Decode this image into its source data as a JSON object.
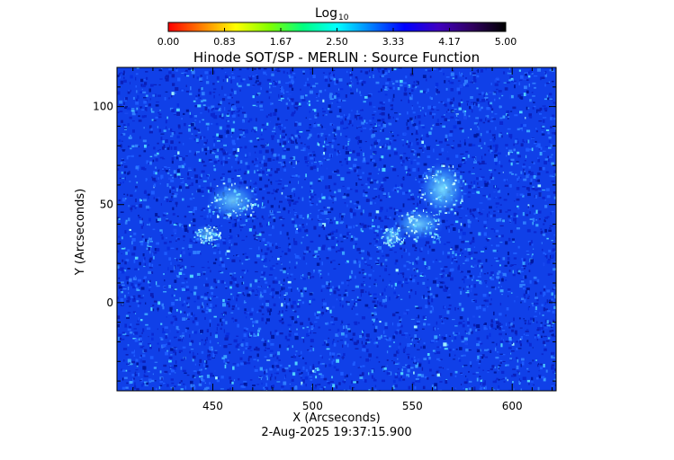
{
  "chart_data": {
    "type": "heatmap",
    "title": "Hinode SOT/SP - MERLIN : Source Function",
    "colorbar": {
      "label_main": "Log",
      "label_sub": "10",
      "ticks": [
        "0.00",
        "0.83",
        "1.67",
        "2.50",
        "3.33",
        "4.17",
        "5.00"
      ],
      "range": [
        0,
        5
      ],
      "colors": [
        "#ff0000",
        "#ff8000",
        "#ffff00",
        "#80ff00",
        "#00ff80",
        "#00ffff",
        "#0080ff",
        "#0000ff",
        "#4000c0",
        "#300060",
        "#000000"
      ]
    },
    "xlabel": "X (Arcseconds)",
    "ylabel": "Y (Arcseconds)",
    "xlim": [
      402,
      622
    ],
    "ylim": [
      -45,
      120
    ],
    "x_ticks": [
      "450",
      "500",
      "550",
      "600"
    ],
    "x_tick_values": [
      450,
      500,
      550,
      600
    ],
    "y_ticks": [
      "0",
      "50",
      "100"
    ],
    "y_tick_values": [
      0,
      50,
      100
    ],
    "background_color": "#1040e8",
    "bright_regions": [
      {
        "x": 460,
        "y": 52,
        "rx": 13,
        "ry": 10,
        "intensity": 0.55
      },
      {
        "x": 447,
        "y": 35,
        "rx": 7,
        "ry": 5,
        "intensity": 0.45
      },
      {
        "x": 565,
        "y": 58,
        "rx": 12,
        "ry": 14,
        "intensity": 0.7
      },
      {
        "x": 553,
        "y": 40,
        "rx": 13,
        "ry": 8,
        "intensity": 0.6
      },
      {
        "x": 540,
        "y": 34,
        "rx": 6,
        "ry": 5,
        "intensity": 0.45
      }
    ],
    "footer": "2-Aug-2025 19:37:15.900"
  }
}
